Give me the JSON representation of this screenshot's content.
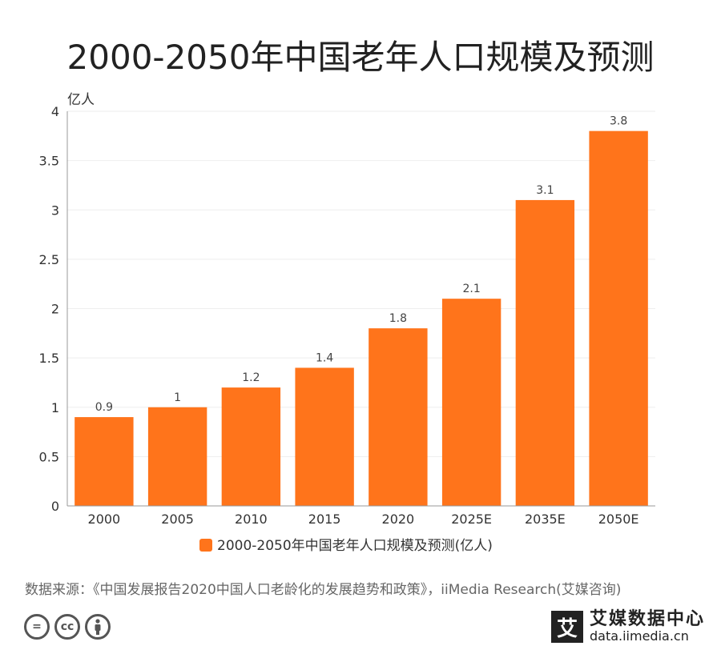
{
  "title": "2000-2050年中国老年人口规模及预测",
  "source": "数据来源：《中国发展报告2020中国人口老龄化的发展趋势和政策》，iiMedia Research(艾媒咨询)",
  "footer": {
    "brand_mark": "艾",
    "brand_name": "艾媒数据中心",
    "brand_url": "data.iimedia.cn"
  },
  "icons": [
    "equals-icon",
    "cc-icon",
    "person-icon"
  ],
  "colors": {
    "bar": "#FF741B",
    "grid": "#EEEEEE",
    "axis": "#999999"
  },
  "chart_data": {
    "type": "bar",
    "title": "2000-2050年中国老年人口规模及预测",
    "ylabel": "亿人",
    "xlabel": "",
    "categories": [
      "2000",
      "2005",
      "2010",
      "2015",
      "2020",
      "2025E",
      "2035E",
      "2050E"
    ],
    "series": [
      {
        "name": "2000-2050年中国老年人口规模及预测(亿人)",
        "values": [
          0.9,
          1,
          1.2,
          1.4,
          1.8,
          2.1,
          3.1,
          3.8
        ]
      }
    ],
    "value_labels": [
      "0.9",
      "1",
      "1.2",
      "1.4",
      "1.8",
      "2.1",
      "3.1",
      "3.8"
    ],
    "yticks": [
      "0",
      "0.5",
      "1",
      "1.5",
      "2",
      "2.5",
      "3",
      "3.5",
      "4"
    ],
    "ylim": [
      0,
      4
    ],
    "grid": true,
    "legend_position": "bottom"
  }
}
